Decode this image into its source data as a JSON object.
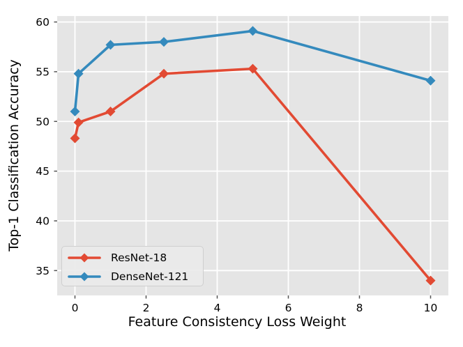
{
  "chart_data": {
    "type": "line",
    "title": "",
    "xlabel": "Feature Consistency Loss Weight",
    "ylabel": "Top-1 Classification Accuracy",
    "x_ticks": [
      0,
      2,
      4,
      6,
      8,
      10
    ],
    "y_ticks": [
      35,
      40,
      45,
      50,
      55,
      60
    ],
    "xlim": [
      -0.5,
      10.5
    ],
    "ylim": [
      32.5,
      60.6
    ],
    "grid": true,
    "legend_position": "lower-left",
    "series": [
      {
        "name": "ResNet-18",
        "color": "#E24A33",
        "marker": "diamond",
        "x": [
          0,
          0.1,
          1,
          2.5,
          5,
          10
        ],
        "y": [
          48.3,
          49.9,
          51.0,
          54.8,
          55.3,
          34.0
        ]
      },
      {
        "name": "DenseNet-121",
        "color": "#348ABD",
        "marker": "diamond",
        "x": [
          0,
          0.1,
          1,
          2.5,
          5,
          10
        ],
        "y": [
          51.0,
          54.8,
          57.7,
          58.0,
          59.1,
          54.1
        ]
      }
    ],
    "style": {
      "plot_bg": "#E5E5E5",
      "grid_color": "#FFFFFF",
      "tick_color": "#555555",
      "text_color": "#000000",
      "legend_bg": "#EAEAEA",
      "legend_border": "#CFCFCF"
    }
  }
}
